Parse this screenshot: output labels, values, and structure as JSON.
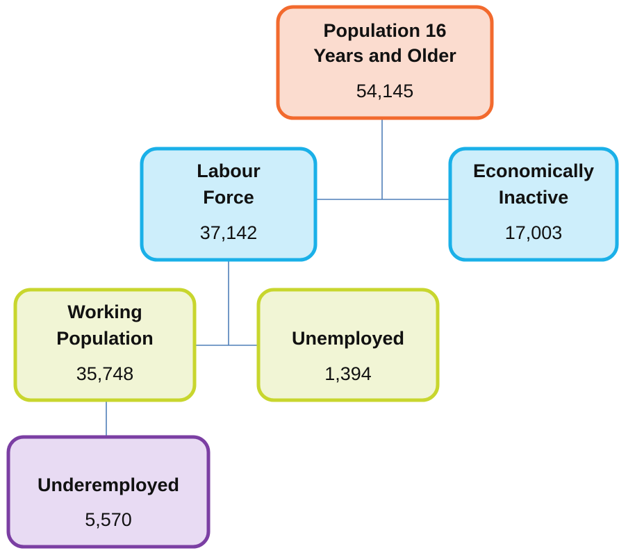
{
  "nodes": [
    {
      "label": [
        "Population 16",
        "Years and Older"
      ],
      "value": "54,145"
    },
    {
      "label": [
        "Labour",
        "Force"
      ],
      "value": "37,142"
    },
    {
      "label": [
        "Economically",
        "Inactive"
      ],
      "value": "17,003"
    },
    {
      "label": [
        "Working",
        "Population"
      ],
      "value": "35,748"
    },
    {
      "label": [
        "Unemployed"
      ],
      "value": "1,394"
    },
    {
      "label": [
        "Underemployed"
      ],
      "value": "5,570"
    }
  ]
}
